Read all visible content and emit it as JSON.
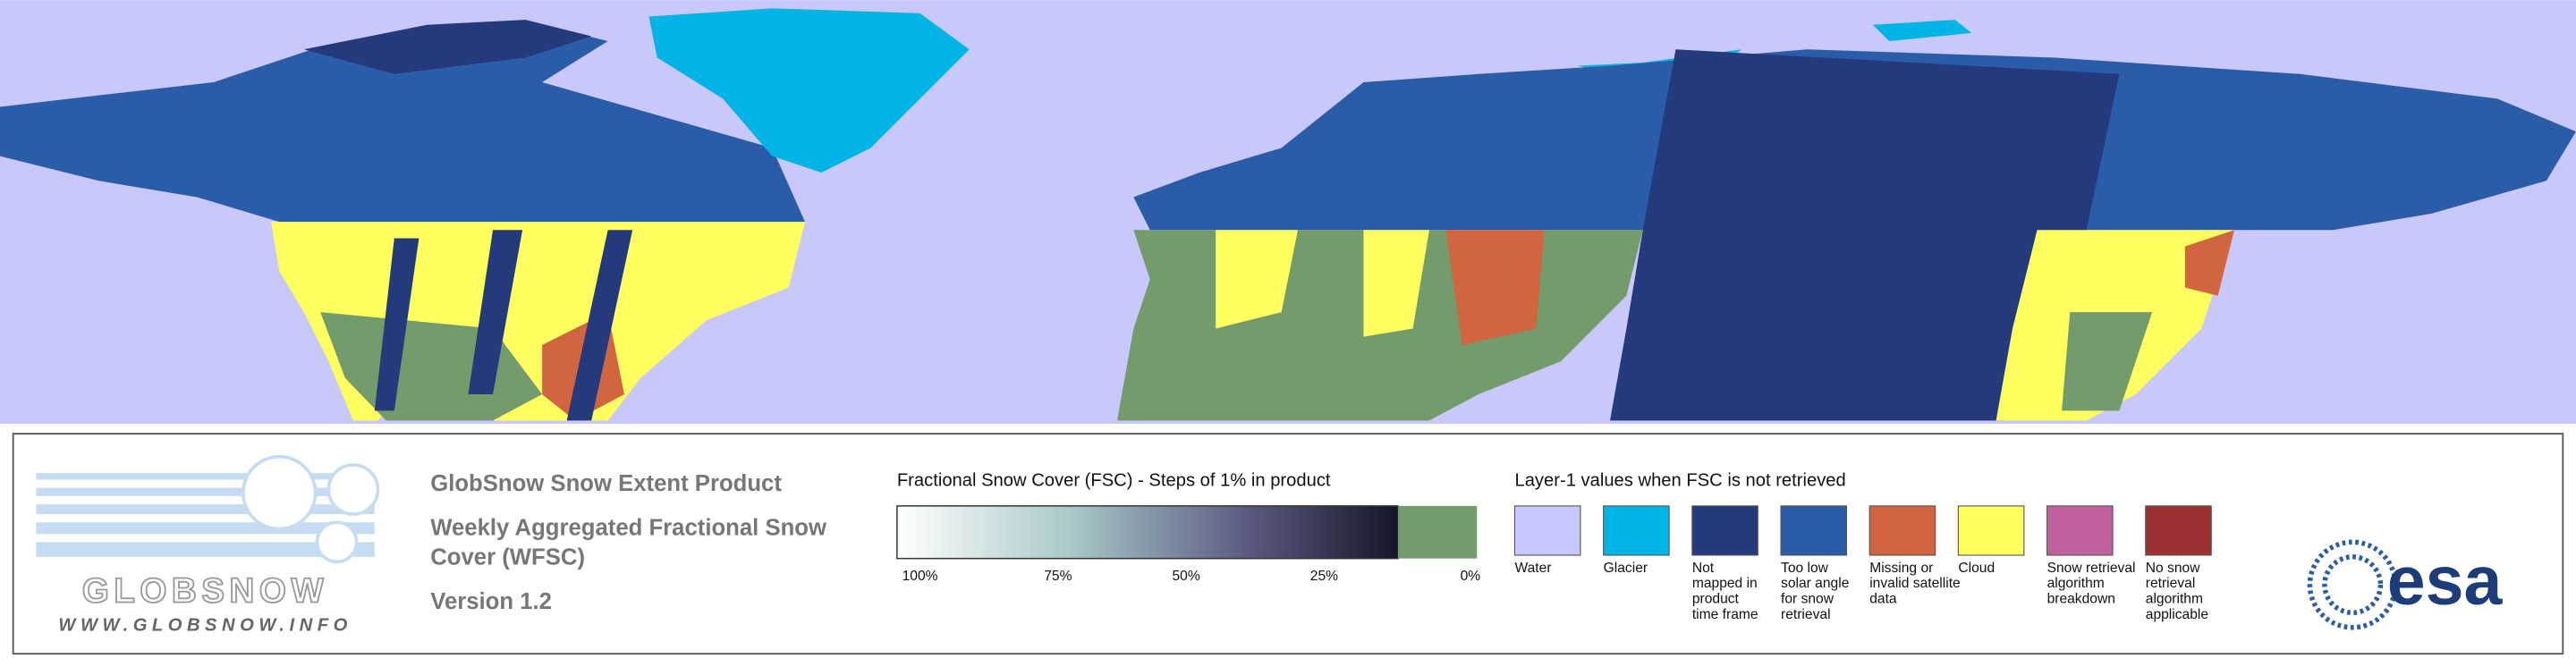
{
  "header": {
    "title": "GlobSnow Snow Extent Product",
    "subtitle_lines": [
      "Weekly Aggregated Fractional Snow",
      "Cover (WFSC)"
    ],
    "version": "Version 1.2"
  },
  "logo": {
    "name": "GLOBSNOW",
    "url": "WWW.GLOBSNOW.INFO"
  },
  "fsc_legend": {
    "title": "Fractional Snow Cover (FSC) - Steps of 1% in product",
    "ticks": [
      "100%",
      "75%",
      "50%",
      "25%",
      "0%"
    ]
  },
  "layer1_legend": {
    "title": "Layer-1 values when FSC is not retrieved",
    "items": [
      {
        "lines": [
          "Water"
        ],
        "color": "#c8c8ff"
      },
      {
        "lines": [
          "Glacier"
        ],
        "color": "#00b4e6"
      },
      {
        "lines": [
          "Not",
          "mapped in",
          "product",
          "time frame"
        ],
        "color": "#253a7c"
      },
      {
        "lines": [
          "Too low",
          "solar angle",
          "for snow",
          "retrieval"
        ],
        "color": "#2a5ca8"
      },
      {
        "lines": [
          "Missing or",
          "invalid satellite",
          "data"
        ],
        "color": "#d06540"
      },
      {
        "lines": [
          "Cloud"
        ],
        "color": "#ffff60"
      },
      {
        "lines": [
          "Snow retrieval",
          "algorithm",
          "breakdown"
        ],
        "color": "#c0609c"
      },
      {
        "lines": [
          "No snow",
          "retrieval",
          "algorithm",
          "applicable"
        ],
        "color": "#9c3030"
      }
    ]
  },
  "esa": "esa"
}
